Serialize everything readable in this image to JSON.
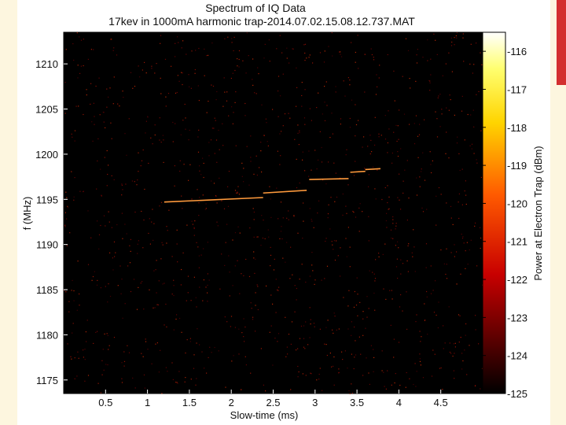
{
  "chart_data": {
    "type": "heatmap",
    "title": "Spectrum of IQ Data",
    "subtitle": "17kev in 1000mA harmonic trap-2014.07.02.15.08.12.737.MAT",
    "xlabel": "Slow-time (ms)",
    "ylabel": "f (MHz)",
    "xlim": [
      0,
      5
    ],
    "ylim": [
      1173.5,
      1213.5
    ],
    "x_ticks": [
      "0.5",
      "1",
      "1.5",
      "2",
      "2.5",
      "3",
      "3.5",
      "4",
      "4.5"
    ],
    "x_tick_values": [
      0.5,
      1,
      1.5,
      2,
      2.5,
      3,
      3.5,
      4,
      4.5
    ],
    "y_ticks": [
      "1175",
      "1180",
      "1185",
      "1190",
      "1195",
      "1200",
      "1205",
      "1210"
    ],
    "y_tick_values": [
      1175,
      1180,
      1185,
      1190,
      1195,
      1200,
      1205,
      1210
    ],
    "colorbar": {
      "label": "Power at Electron Trap (dBm)",
      "range": [
        -125,
        -115.5
      ],
      "ticks": [
        "-116",
        "-117",
        "-118",
        "-119",
        "-120",
        "-121",
        "-122",
        "-123",
        "-124",
        "-125"
      ],
      "tick_values": [
        -116,
        -117,
        -118,
        -119,
        -120,
        -121,
        -122,
        -123,
        -124,
        -125
      ],
      "colormap": "hot"
    },
    "track_segments": [
      {
        "x0": 1.2,
        "x1": 2.38,
        "y0": 1194.7,
        "y1": 1195.2
      },
      {
        "x0": 2.38,
        "x1": 2.9,
        "y0": 1195.7,
        "y1": 1196.0
      },
      {
        "x0": 2.93,
        "x1": 3.4,
        "y0": 1197.2,
        "y1": 1197.3
      },
      {
        "x0": 3.42,
        "x1": 3.6,
        "y0": 1198.0,
        "y1": 1198.1
      },
      {
        "x0": 3.6,
        "x1": 3.78,
        "y0": 1198.3,
        "y1": 1198.4
      }
    ],
    "colors": {
      "background": "#000000",
      "track": "#ff9a3c",
      "noise": "#7a1a08"
    }
  }
}
